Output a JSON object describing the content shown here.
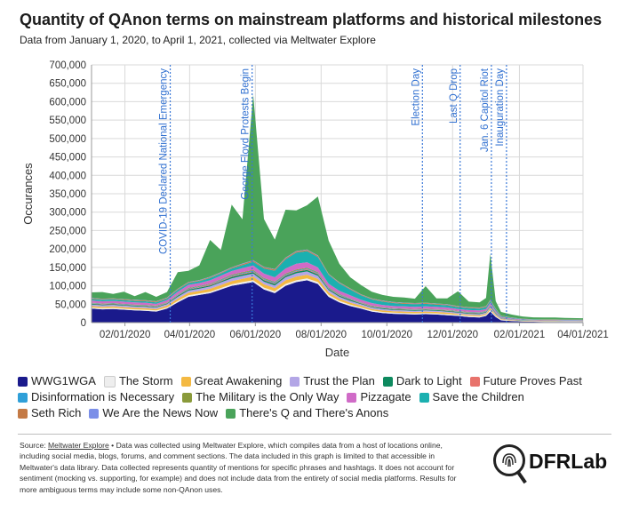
{
  "header": {
    "title": "Quantity of QAnon terms on mainstream platforms and historical milestones",
    "subtitle": "Data from January 1, 2020, to April 1, 2021, collected via Meltwater Explore"
  },
  "colors": {
    "grid": "#d9d9d9",
    "axis": "#999999",
    "milestone": "#3a78d8"
  },
  "chart_data": {
    "type": "area",
    "stacked": true,
    "title": "Quantity of QAnon terms on mainstream platforms and historical milestones",
    "xlabel": "Date",
    "ylabel": "Occurances",
    "ylim": [
      0,
      700000
    ],
    "yticks": [
      "0",
      "50,000",
      "100,000",
      "150,000",
      "200,000",
      "250,000",
      "300,000",
      "350,000",
      "400,000",
      "450,000",
      "500,000",
      "550,000",
      "600,000",
      "650,000",
      "700,000"
    ],
    "xlim": [
      "2020-01-01",
      "2021-04-01"
    ],
    "xticks": [
      {
        "label": "02/01/2020",
        "day": 31
      },
      {
        "label": "04/01/2020",
        "day": 91
      },
      {
        "label": "06/01/2020",
        "day": 152
      },
      {
        "label": "08/01/2020",
        "day": 213
      },
      {
        "label": "10/01/2020",
        "day": 274
      },
      {
        "label": "12/01/2020",
        "day": 335
      },
      {
        "label": "02/01/2021",
        "day": 397
      },
      {
        "label": "04/01/2021",
        "day": 456
      }
    ],
    "milestones": [
      {
        "label": "COVID-19 Declared National Emergency",
        "day": 73
      },
      {
        "label": "George Floyd Protests Begin",
        "day": 149
      },
      {
        "label": "Election Day",
        "day": 307
      },
      {
        "label": "Last Q Drop",
        "day": 342
      },
      {
        "label": "Jan. 6 Capitol Riot",
        "day": 371
      },
      {
        "label": "Inauguration Day",
        "day": 385
      }
    ],
    "x": [
      0,
      10,
      20,
      30,
      40,
      50,
      60,
      70,
      80,
      90,
      100,
      110,
      120,
      130,
      140,
      150,
      160,
      170,
      180,
      190,
      200,
      210,
      220,
      230,
      240,
      250,
      260,
      270,
      280,
      290,
      300,
      310,
      320,
      330,
      340,
      350,
      360,
      366,
      370,
      375,
      380,
      390,
      400,
      410,
      420,
      430,
      440,
      450,
      456
    ],
    "series": [
      {
        "name": "WWG1WGA",
        "color": "#1a1a8c",
        "values": [
          38000,
          36000,
          37000,
          35000,
          33000,
          32000,
          30000,
          38000,
          55000,
          70000,
          75000,
          80000,
          90000,
          100000,
          105000,
          110000,
          90000,
          80000,
          100000,
          110000,
          115000,
          105000,
          70000,
          55000,
          45000,
          38000,
          30000,
          26000,
          24000,
          23000,
          22000,
          23000,
          22000,
          20000,
          18000,
          15000,
          14000,
          18000,
          30000,
          15000,
          6000,
          4000,
          3000,
          2500,
          2000,
          2000,
          1800,
          1800,
          1600
        ]
      },
      {
        "name": "The Storm",
        "color": "#eeeeee",
        "values": [
          3000,
          3000,
          3000,
          3000,
          3000,
          3000,
          3000,
          3000,
          4000,
          4000,
          4000,
          4000,
          4000,
          4000,
          5000,
          5000,
          5000,
          5000,
          5000,
          5000,
          5000,
          5000,
          5000,
          4000,
          4000,
          3000,
          3000,
          3000,
          3000,
          3000,
          3000,
          3000,
          3000,
          3000,
          3000,
          3000,
          3000,
          3000,
          4000,
          3000,
          2000,
          1500,
          1000,
          1000,
          1000,
          1000,
          1000,
          1000,
          1000
        ]
      },
      {
        "name": "Great Awakening",
        "color": "#f4b942",
        "values": [
          4000,
          4000,
          4000,
          4000,
          4000,
          4000,
          4000,
          5000,
          6000,
          7000,
          7000,
          8000,
          8000,
          9000,
          9000,
          10000,
          9000,
          9000,
          10000,
          10000,
          10000,
          9000,
          7000,
          6000,
          5000,
          5000,
          4000,
          4000,
          4000,
          4000,
          4000,
          4000,
          4000,
          4000,
          3000,
          3000,
          3000,
          3000,
          5000,
          3000,
          1500,
          1000,
          1000,
          800,
          800,
          800,
          700,
          700,
          700
        ]
      },
      {
        "name": "Trust the Plan",
        "color": "#b3a6e6",
        "values": [
          4000,
          4000,
          4000,
          4000,
          4000,
          4000,
          4000,
          4000,
          5000,
          6000,
          6000,
          6000,
          7000,
          7000,
          8000,
          8000,
          7000,
          7000,
          8000,
          9000,
          9000,
          8000,
          6000,
          5000,
          5000,
          4000,
          4000,
          4000,
          3000,
          3000,
          3000,
          3000,
          3000,
          3000,
          3000,
          3000,
          3000,
          3000,
          4000,
          3000,
          1500,
          1000,
          800,
          700,
          700,
          700,
          600,
          600,
          600
        ]
      },
      {
        "name": "Dark to Light",
        "color": "#0e8a5f",
        "values": [
          2000,
          2000,
          2000,
          2000,
          2000,
          2000,
          2000,
          2000,
          3000,
          3000,
          3000,
          3000,
          3000,
          4000,
          4000,
          4000,
          4000,
          4000,
          4000,
          4000,
          4000,
          4000,
          3000,
          3000,
          3000,
          2000,
          2000,
          2000,
          2000,
          2000,
          2000,
          2000,
          2000,
          2000,
          2000,
          2000,
          2000,
          2000,
          2000,
          1500,
          1000,
          800,
          600,
          500,
          500,
          500,
          500,
          500,
          500
        ]
      },
      {
        "name": "Future Proves Past",
        "color": "#e8736c",
        "values": [
          1000,
          1000,
          1000,
          1000,
          1000,
          1000,
          1000,
          1000,
          1500,
          1500,
          1500,
          2000,
          2000,
          2000,
          2000,
          2000,
          2000,
          2000,
          2000,
          2000,
          2000,
          2000,
          1500,
          1500,
          1500,
          1000,
          1000,
          1000,
          1000,
          1000,
          1000,
          1000,
          1000,
          1000,
          1000,
          1000,
          1000,
          1000,
          1000,
          800,
          500,
          400,
          300,
          300,
          300,
          300,
          300,
          300,
          300
        ]
      },
      {
        "name": "Disinformation is Necessary",
        "color": "#2f9fd8",
        "values": [
          1000,
          1000,
          1000,
          1000,
          1000,
          1000,
          1000,
          1000,
          1500,
          1500,
          1500,
          1500,
          2000,
          2000,
          2000,
          2000,
          2000,
          2000,
          2000,
          2000,
          2000,
          2000,
          1500,
          1500,
          1500,
          1000,
          1000,
          1000,
          1000,
          1000,
          1000,
          1000,
          1000,
          1000,
          1000,
          1000,
          1000,
          1000,
          1000,
          800,
          500,
          400,
          300,
          300,
          300,
          300,
          300,
          300,
          300
        ]
      },
      {
        "name": "The Military is the Only Way",
        "color": "#8a9a3b",
        "values": [
          1000,
          1000,
          1000,
          1000,
          1000,
          1000,
          1000,
          1000,
          1000,
          1500,
          1500,
          1500,
          1500,
          2000,
          2000,
          2000,
          2000,
          2000,
          2000,
          2000,
          2000,
          2000,
          1500,
          1500,
          1000,
          1000,
          1000,
          1000,
          1000,
          1000,
          1000,
          1000,
          1000,
          1000,
          1000,
          1000,
          1000,
          1000,
          1000,
          800,
          500,
          400,
          300,
          300,
          300,
          300,
          300,
          300,
          300
        ]
      },
      {
        "name": "Pizzagate",
        "color": "#d06bc7",
        "values": [
          6000,
          6000,
          6000,
          6000,
          6000,
          6000,
          5000,
          6000,
          7000,
          8000,
          8000,
          9000,
          10000,
          10000,
          11000,
          12000,
          12000,
          12000,
          14000,
          16000,
          15000,
          13000,
          10000,
          9000,
          8000,
          7000,
          7000,
          6000,
          6000,
          6000,
          6000,
          6000,
          6000,
          6000,
          5000,
          5000,
          5000,
          5000,
          6000,
          4000,
          2000,
          1500,
          1200,
          1000,
          1000,
          1000,
          900,
          900,
          900
        ]
      },
      {
        "name": "Save the Children",
        "color": "#1bb0b0",
        "values": [
          4000,
          4000,
          4000,
          4000,
          4000,
          4000,
          4000,
          4000,
          5000,
          5000,
          5000,
          6000,
          6000,
          7000,
          8000,
          10000,
          14000,
          18000,
          25000,
          30000,
          30000,
          28000,
          24000,
          20000,
          16000,
          12000,
          10000,
          9000,
          8000,
          7000,
          7000,
          7000,
          6000,
          6000,
          5000,
          5000,
          5000,
          5000,
          5000,
          4000,
          2000,
          1500,
          1200,
          1000,
          1000,
          1000,
          900,
          900,
          900
        ]
      },
      {
        "name": "Seth Rich",
        "color": "#c47a45",
        "values": [
          2000,
          2000,
          2000,
          2000,
          2000,
          2000,
          2000,
          2000,
          2000,
          2000,
          2000,
          2000,
          2000,
          2000,
          3000,
          3000,
          3000,
          3000,
          3000,
          3000,
          3000,
          3000,
          2000,
          2000,
          2000,
          2000,
          2000,
          2000,
          2000,
          2000,
          2000,
          2000,
          2000,
          2000,
          2000,
          2000,
          2000,
          2000,
          2000,
          1500,
          1000,
          800,
          600,
          500,
          500,
          500,
          500,
          500,
          500
        ]
      },
      {
        "name": "We Are the News Now",
        "color": "#7b8fe8",
        "values": [
          1000,
          1000,
          1000,
          1000,
          1000,
          1000,
          1000,
          1000,
          1000,
          1000,
          1000,
          1500,
          1500,
          1500,
          1500,
          1500,
          1500,
          1500,
          1500,
          1500,
          1500,
          1500,
          1000,
          1000,
          1000,
          1000,
          1000,
          1000,
          1000,
          1000,
          1000,
          1000,
          1000,
          1000,
          1000,
          1000,
          1000,
          1000,
          1000,
          800,
          500,
          400,
          300,
          300,
          300,
          300,
          300,
          300,
          300
        ]
      },
      {
        "name": "There's Q and There's Anons",
        "color": "#4aa35a",
        "values": [
          15000,
          18000,
          12000,
          20000,
          10000,
          22000,
          12000,
          15000,
          45000,
          30000,
          40000,
          100000,
          60000,
          170000,
          120000,
          450000,
          130000,
          80000,
          130000,
          110000,
          120000,
          160000,
          90000,
          50000,
          30000,
          25000,
          18000,
          15000,
          14000,
          14000,
          12000,
          45000,
          14000,
          16000,
          40000,
          15000,
          14000,
          22000,
          125000,
          20000,
          10000,
          8000,
          6000,
          5000,
          5000,
          5000,
          4500,
          4000,
          4000
        ]
      }
    ]
  },
  "legend_rows": [
    [
      0,
      1,
      2,
      3,
      4,
      5
    ],
    [
      6,
      7,
      8,
      9
    ],
    [
      10,
      11,
      12
    ]
  ],
  "source": {
    "label": "Source:",
    "link": "Meltwater Explore",
    "text": " • Data was collected using Meltwater Explore, which compiles data from a host of locations online, including social media, blogs, forums, and comment sections. The data included in this graph is limited to that accessible in Meltwater's data library. Data collected represents quantity of mentions for specific phrases and hashtags. It does not account for sentiment (mocking vs. supporting, for example) and does not include data from the entirety of social media platforms. Results for more ambiguous terms may include some non-QAnon uses."
  },
  "logo": {
    "text": "DFRLab",
    "icon": "magnifier-fingerprint-icon"
  }
}
